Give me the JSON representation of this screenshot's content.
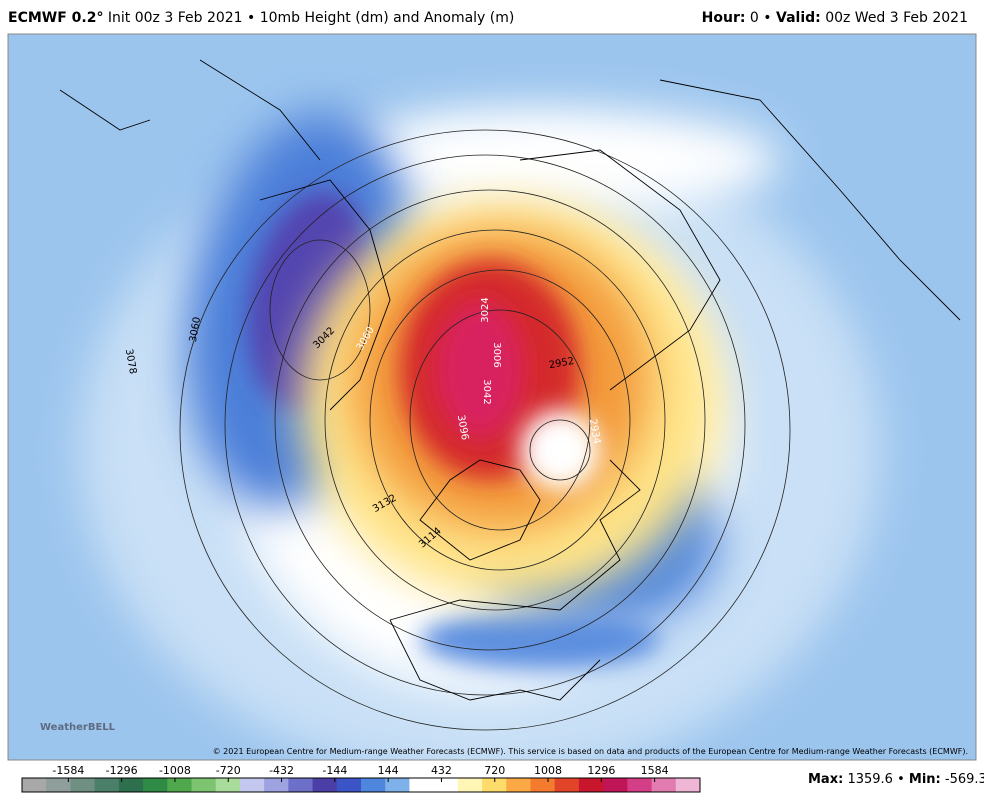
{
  "header": {
    "model": "ECMWF 0.2°",
    "run": "Init 00z 3 Feb 2021 • 10mb Height (dm) and Anomaly (m)",
    "hour_label": "Hour:",
    "hour": "0",
    "separator": "•",
    "valid_label": "Valid:",
    "valid": "00z Wed 3 Feb 2021"
  },
  "map": {
    "contour_labels": [
      "3078",
      "3060",
      "3042",
      "3060",
      "3024",
      "3006",
      "3042",
      "2952",
      "3096",
      "2934",
      "3132",
      "3114"
    ],
    "logo": "WeatherBELL",
    "credit": "© 2021 European Centre for Medium-range Weather Forecasts (ECMWF). This service is based on data and products of the European Centre for Medium-range Weather Forecasts (ECMWF)."
  },
  "colorbar": {
    "ticks": [
      -1584,
      -1296,
      -1008,
      -720,
      -432,
      -144,
      144,
      432,
      720,
      1008,
      1296,
      1584
    ]
  },
  "stats": {
    "max_label": "Max:",
    "max": 1359.6,
    "separator": "•",
    "min_label": "Min:",
    "min": -569.3
  }
}
